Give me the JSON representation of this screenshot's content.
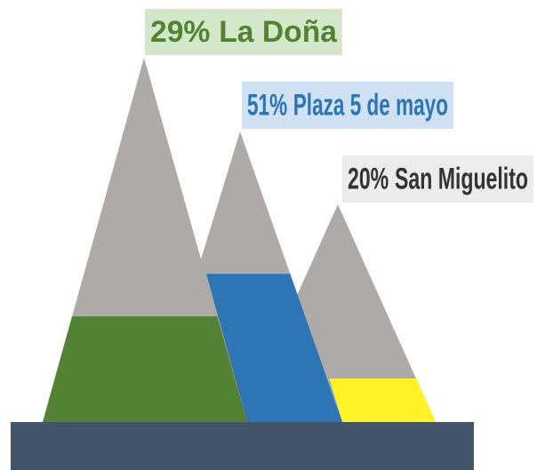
{
  "chart_data": {
    "type": "mountain",
    "categories": [
      "La Doña",
      "Plaza 5 de mayo",
      "San Miguelito"
    ],
    "values": [
      29,
      51,
      20
    ],
    "value_labels": [
      "29%",
      "51%",
      "20%"
    ],
    "colors": [
      "#548235",
      "#2e75b6",
      "#fff229"
    ]
  }
}
